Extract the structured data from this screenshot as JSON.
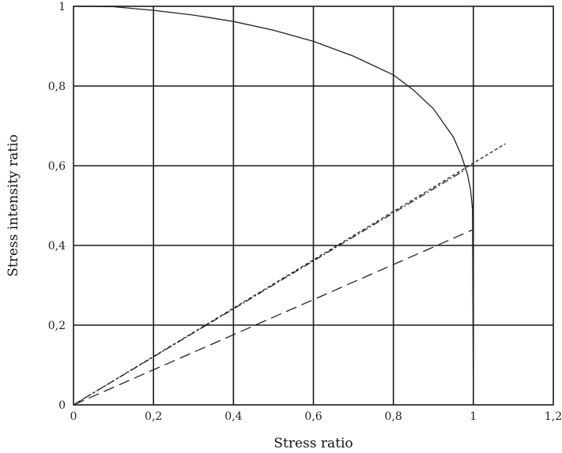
{
  "chart_data": {
    "type": "line",
    "title": "",
    "xlabel": "Stress ratio",
    "ylabel": "Stress intensity ratio",
    "xlim": [
      0,
      1.2
    ],
    "ylim": [
      0,
      1
    ],
    "grid": true,
    "x_ticks": [
      "0",
      "0,2",
      "0,4",
      "0,6",
      "0,8",
      "1",
      "1,2"
    ],
    "y_ticks": [
      "0",
      "0,2",
      "0,4",
      "0,6",
      "0,8",
      "1"
    ],
    "series": [
      {
        "style": "solid",
        "color": "#222222",
        "points": [
          [
            0,
            1.0
          ],
          [
            0.1,
            0.999
          ],
          [
            0.2,
            0.99
          ],
          [
            0.3,
            0.978
          ],
          [
            0.4,
            0.962
          ],
          [
            0.5,
            0.94
          ],
          [
            0.6,
            0.912
          ],
          [
            0.7,
            0.875
          ],
          [
            0.8,
            0.828
          ],
          [
            0.85,
            0.79
          ],
          [
            0.9,
            0.743
          ],
          [
            0.95,
            0.672
          ],
          [
            0.97,
            0.626
          ],
          [
            0.985,
            0.58
          ],
          [
            0.993,
            0.54
          ],
          [
            0.998,
            0.49
          ],
          [
            1.0,
            0.0
          ]
        ]
      },
      {
        "style": "dash-dot",
        "color": "#222222",
        "points": [
          [
            0,
            0
          ],
          [
            0.98,
            0.59
          ]
        ]
      },
      {
        "style": "short-dash",
        "color": "#222222",
        "points": [
          [
            0,
            0
          ],
          [
            1.08,
            0.655
          ]
        ]
      },
      {
        "style": "long-dash",
        "color": "#222222",
        "points": [
          [
            0,
            0
          ],
          [
            1.0,
            0.44
          ]
        ]
      }
    ]
  }
}
